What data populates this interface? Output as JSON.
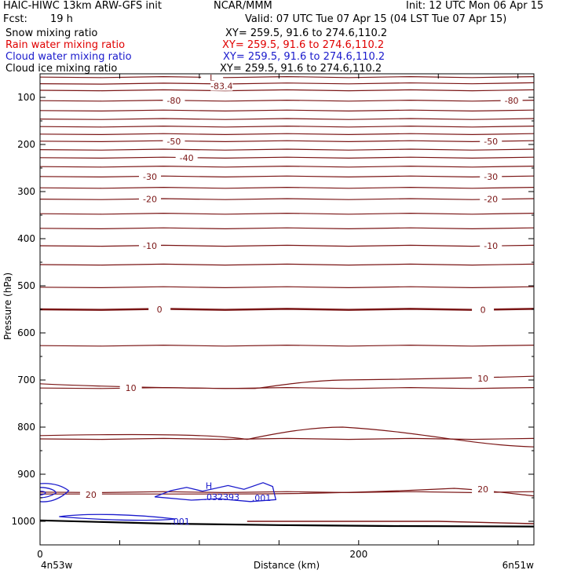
{
  "header": {
    "model": "HAIC-HIWC 13km ARW-GFS init",
    "org": "NCAR/MMM",
    "init": "Init: 12 UTC Mon 06 Apr 15",
    "fcst_label": "Fcst:",
    "fcst_value": "19 h",
    "valid": "Valid: 07 UTC Tue 07 Apr 15 (04 LST Tue 07 Apr 15)"
  },
  "legend": [
    {
      "name": "Snow mixing ratio",
      "xy": "XY= 259.5, 91.6 to 274.6,110.2",
      "color": "#000000"
    },
    {
      "name": "Rain water mixing ratio",
      "xy": "XY= 259.5, 91.6 to 274.6,110.2",
      "color": "#e00000"
    },
    {
      "name": "Cloud water mixing ratio",
      "xy": "XY= 259.5, 91.6 to 274.6,110.2",
      "color": "#1a1acc"
    },
    {
      "name": "Cloud ice mixing ratio",
      "xy": "XY= 259.5, 91.6 to 274.6,110.2",
      "color": "#000000"
    }
  ],
  "chart_data": {
    "type": "contour cross-section",
    "xlabel": "Distance (km)",
    "ylabel": "Pressure (hPa)",
    "xlim": [
      0,
      310
    ],
    "ylim": [
      1050,
      50
    ],
    "xticks": [
      0,
      200
    ],
    "yticks": [
      100,
      200,
      300,
      400,
      500,
      600,
      700,
      800,
      900,
      1000
    ],
    "x_endpoints": {
      "left": "4n53w",
      "right": "6n51w"
    },
    "colors": {
      "temperature": "#7a1515",
      "cloud_water": "#1a1acc",
      "ground": "#000000"
    },
    "temperature_contours": [
      {
        "p": [
          57,
          57
        ],
        "label": null
      },
      {
        "p": [
          71,
          70
        ],
        "label": null
      },
      {
        "p": [
          85,
          85
        ],
        "label": null
      },
      {
        "p": [
          107,
          107
        ],
        "label": "-80"
      },
      {
        "p": [
          128,
          128
        ],
        "label": null
      },
      {
        "p": [
          146,
          146
        ],
        "label": null
      },
      {
        "p": [
          162,
          162
        ],
        "label": null
      },
      {
        "p": [
          178,
          178
        ],
        "label": null
      },
      {
        "p": [
          193,
          193
        ],
        "label": "-50"
      },
      {
        "p": [
          211,
          211
        ],
        "label": null
      },
      {
        "p": [
          228,
          228
        ],
        "label": "-40"
      },
      {
        "p": [
          247,
          247
        ],
        "label": null
      },
      {
        "p": [
          268,
          268
        ],
        "label": "-30"
      },
      {
        "p": [
          292,
          292
        ],
        "label": null
      },
      {
        "p": [
          316,
          316
        ],
        "label": "-20"
      },
      {
        "p": [
          347,
          347
        ],
        "label": null
      },
      {
        "p": [
          378,
          378
        ],
        "label": null
      },
      {
        "p": [
          415,
          415
        ],
        "label": "-10"
      },
      {
        "p": [
          455,
          455
        ],
        "label": null
      },
      {
        "p": [
          503,
          503
        ],
        "label": null
      },
      {
        "p": [
          550,
          550
        ],
        "label": "0",
        "bold": true
      },
      {
        "p": [
          627,
          627
        ],
        "label": null
      },
      {
        "p": [
          717,
          717
        ],
        "label": "10"
      },
      {
        "p": [
          825,
          825
        ],
        "label": null
      },
      {
        "p": [
          938,
          938
        ],
        "label": "20"
      }
    ],
    "temperature_labels": [
      "L",
      "-83.4",
      "-80",
      "-50",
      "-40",
      "-30",
      "-20",
      "-10",
      "0",
      "10",
      "20"
    ],
    "cloud_water_labels": [
      "H",
      ".032393",
      ".001",
      ".001"
    ]
  }
}
